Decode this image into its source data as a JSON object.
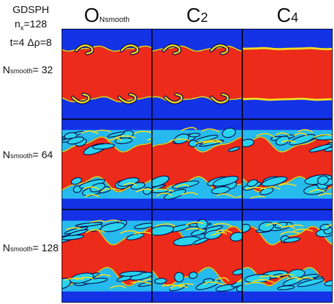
{
  "info": {
    "method": "GDSPH",
    "nx": {
      "base": "n",
      "sub": "x",
      "rest": "=128"
    },
    "params": "t=4 Δρ=8"
  },
  "columns": [
    {
      "main": "O",
      "sub": "Nsmooth",
      "kernel": "O_Nsmooth"
    },
    {
      "main": "C",
      "sub": "2",
      "kernel": "C2"
    },
    {
      "main": "C",
      "sub": "4",
      "kernel": "C4"
    }
  ],
  "rows": [
    {
      "base": "N",
      "sub": "smooth",
      "rest": "= 32",
      "nsmooth": 32
    },
    {
      "base": "N",
      "sub": "smooth",
      "rest": "= 64",
      "nsmooth": 64
    },
    {
      "base": "N",
      "sub": "smooth",
      "rest": "= 128",
      "nsmooth": 128
    }
  ],
  "colors": {
    "outer": "#1433e6",
    "band": "#ec2b1a",
    "mix": "#2ad2ee",
    "edge": "#f3dd22",
    "dark": "#0b1050"
  }
}
